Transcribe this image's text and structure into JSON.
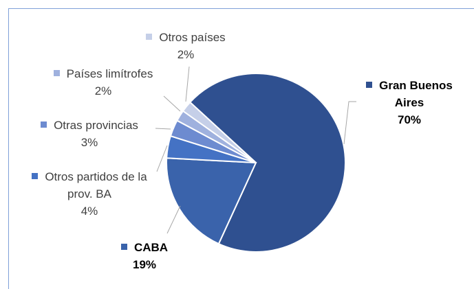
{
  "chart_data": {
    "type": "pie",
    "categories": [
      "Gran Buenos Aires",
      "CABA",
      "Otros partidos de la prov. BA",
      "Otras provincias",
      "Países limítrofes",
      "Otros países"
    ],
    "values": [
      70,
      19,
      4,
      3,
      2,
      2
    ],
    "value_labels": [
      "70%",
      "19%",
      "4%",
      "3%",
      "2%",
      "2%"
    ],
    "colors": [
      "#2f5090",
      "#3a63ab",
      "#4472c4",
      "#6d8bd0",
      "#9fb1de",
      "#c5cfe8"
    ]
  }
}
